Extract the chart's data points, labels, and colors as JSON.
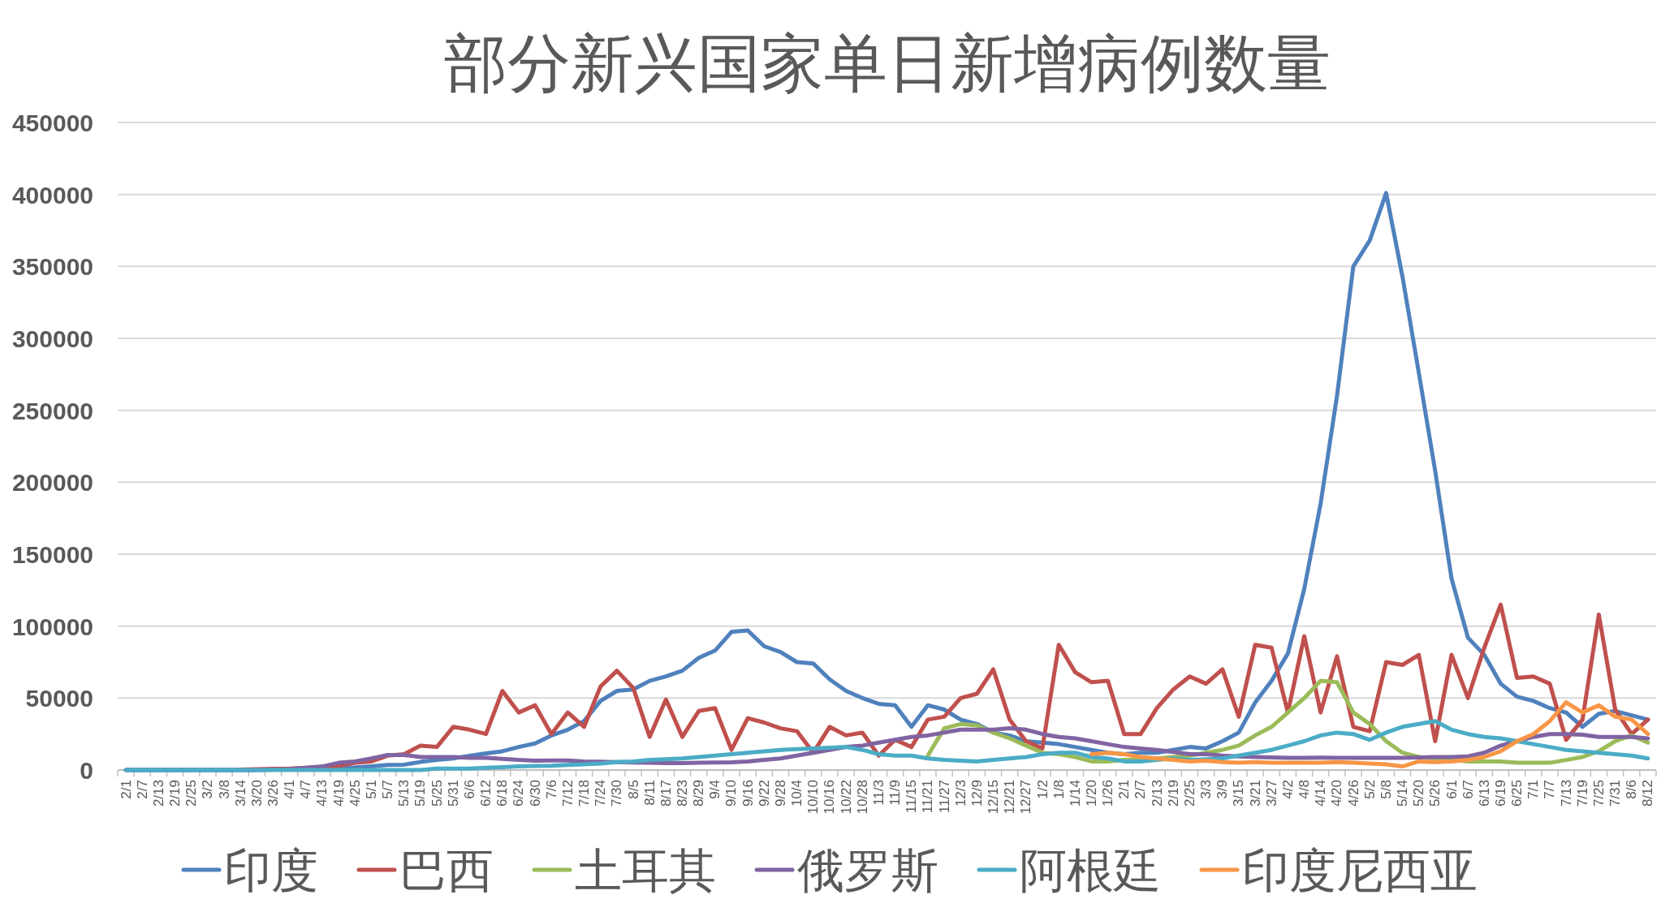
{
  "chart_data": {
    "type": "line",
    "title": "部分新兴国家单日新增病例数量",
    "categories": [
      "2/1",
      "2/7",
      "2/13",
      "2/19",
      "2/25",
      "3/2",
      "3/8",
      "3/14",
      "3/20",
      "3/26",
      "4/1",
      "4/7",
      "4/13",
      "4/19",
      "4/25",
      "5/1",
      "5/7",
      "5/13",
      "5/19",
      "5/25",
      "5/31",
      "6/6",
      "6/12",
      "6/18",
      "6/24",
      "6/30",
      "7/6",
      "7/12",
      "7/18",
      "7/24",
      "7/30",
      "8/5",
      "8/11",
      "8/17",
      "8/23",
      "8/29",
      "9/4",
      "9/10",
      "9/16",
      "9/22",
      "9/28",
      "10/4",
      "10/10",
      "10/16",
      "10/22",
      "10/28",
      "11/3",
      "11/9",
      "11/15",
      "11/21",
      "11/27",
      "12/3",
      "12/9",
      "12/15",
      "12/21",
      "12/27",
      "1/2",
      "1/8",
      "1/14",
      "1/20",
      "1/26",
      "2/1",
      "2/7",
      "2/13",
      "2/19",
      "2/25",
      "3/3",
      "3/9",
      "3/15",
      "3/21",
      "3/27",
      "4/2",
      "4/8",
      "4/14",
      "4/20",
      "4/26",
      "5/2",
      "5/8",
      "5/14",
      "5/20",
      "5/26",
      "6/1",
      "6/7",
      "6/13",
      "6/19",
      "6/25",
      "7/1",
      "7/7",
      "7/13",
      "7/19",
      "7/25",
      "7/31",
      "8/6",
      "8/12"
    ],
    "series": [
      {
        "name": "印度",
        "color": "#4f81bd",
        "values": [
          0,
          0,
          0,
          0,
          0,
          0,
          0,
          0,
          100,
          300,
          500,
          600,
          1000,
          1500,
          1800,
          2500,
          3500,
          3700,
          5600,
          7000,
          8000,
          9900,
          11500,
          13000,
          16000,
          18500,
          24000,
          28000,
          34000,
          48000,
          55000,
          56000,
          62000,
          65000,
          69000,
          78000,
          83000,
          96000,
          97000,
          86000,
          82000,
          75000,
          74000,
          63000,
          55000,
          50000,
          46000,
          45000,
          30000,
          45000,
          42000,
          35000,
          32000,
          26000,
          24000,
          20000,
          19000,
          18000,
          16000,
          14000,
          12000,
          11000,
          12000,
          12000,
          14000,
          16000,
          15000,
          20000,
          26000,
          47000,
          62000,
          81000,
          126000,
          185000,
          260000,
          350000,
          368000,
          401000,
          343000,
          276000,
          208000,
          133000,
          92000,
          80000,
          60000,
          51000,
          48000,
          43000,
          40000,
          30000,
          39000,
          41000,
          38000,
          35000
        ]
      },
      {
        "name": "巴西",
        "color": "#c0504d",
        "values": [
          null,
          null,
          null,
          null,
          null,
          null,
          null,
          300,
          500,
          800,
          1000,
          1500,
          2000,
          3000,
          5000,
          6000,
          10000,
          11000,
          17000,
          16000,
          30000,
          28000,
          25000,
          55000,
          40000,
          45000,
          25000,
          40000,
          30000,
          58000,
          69000,
          57000,
          23000,
          49000,
          23000,
          41000,
          43000,
          14000,
          36000,
          33000,
          29000,
          27000,
          12000,
          30000,
          24000,
          26000,
          10000,
          21000,
          16000,
          35000,
          37000,
          50000,
          53000,
          70000,
          35000,
          20000,
          15000,
          87000,
          68000,
          61000,
          62000,
          25000,
          25000,
          43000,
          56000,
          65000,
          60000,
          70000,
          37000,
          87000,
          85000,
          40000,
          93000,
          40000,
          79000,
          30000,
          27000,
          75000,
          73000,
          80000,
          20000,
          80000,
          50000,
          85000,
          115000,
          64000,
          65000,
          60000,
          21000,
          35000,
          108000,
          42000,
          25000,
          35000
        ]
      },
      {
        "name": "土耳其",
        "color": "#9bbb59",
        "values": [
          null,
          null,
          null,
          null,
          null,
          null,
          null,
          null,
          null,
          null,
          null,
          null,
          null,
          null,
          null,
          null,
          null,
          null,
          null,
          null,
          null,
          null,
          null,
          null,
          null,
          null,
          null,
          null,
          null,
          null,
          null,
          null,
          null,
          null,
          null,
          null,
          null,
          null,
          null,
          null,
          null,
          null,
          null,
          null,
          null,
          null,
          null,
          null,
          null,
          10000,
          29000,
          32000,
          31000,
          26000,
          22000,
          17000,
          12000,
          11000,
          9000,
          6000,
          6000,
          7000,
          7000,
          8000,
          9000,
          10000,
          12000,
          14000,
          17000,
          24000,
          30000,
          40000,
          50000,
          62000,
          61000,
          40000,
          32000,
          20000,
          12000,
          9000,
          8000,
          7000,
          6000,
          6000,
          6000,
          5000,
          5000,
          5000,
          7000,
          9000,
          13000,
          20000,
          24000,
          19000
        ]
      },
      {
        "name": "俄罗斯",
        "color": "#8064a2",
        "values": [
          0,
          0,
          0,
          0,
          0,
          0,
          0,
          0,
          0,
          300,
          500,
          1500,
          2500,
          5000,
          6000,
          8000,
          10500,
          10500,
          9000,
          9000,
          9000,
          8500,
          8500,
          7800,
          7000,
          6500,
          6600,
          6600,
          6000,
          5800,
          5500,
          5200,
          5100,
          4800,
          4800,
          5000,
          5200,
          5400,
          6000,
          7000,
          8000,
          10000,
          12000,
          14000,
          16000,
          17000,
          19000,
          21000,
          23000,
          24000,
          26000,
          28000,
          28000,
          28000,
          29000,
          28000,
          25000,
          23000,
          22000,
          20000,
          18000,
          16000,
          15000,
          14000,
          12500,
          11000,
          11000,
          10000,
          9500,
          9000,
          8700,
          8500,
          8500,
          8600,
          8500,
          8500,
          8500,
          8500,
          8500,
          8800,
          9000,
          9000,
          9500,
          12000,
          17000,
          20000,
          23000,
          25000,
          25000,
          24500,
          23000,
          23000,
          23000,
          22000
        ]
      },
      {
        "name": "阿根廷",
        "color": "#4bacc6",
        "values": [
          0,
          0,
          0,
          0,
          0,
          0,
          0,
          0,
          0,
          0,
          0,
          0,
          0,
          0,
          0,
          0,
          0,
          0,
          0,
          1000,
          1000,
          1000,
          1500,
          2000,
          2500,
          2800,
          3000,
          3500,
          4000,
          4500,
          5500,
          6000,
          7000,
          7500,
          8000,
          9000,
          10000,
          11000,
          12000,
          13000,
          14000,
          14500,
          15000,
          15500,
          16000,
          14000,
          11000,
          10000,
          10000,
          8000,
          7000,
          6500,
          6000,
          7000,
          8000,
          9000,
          11000,
          12000,
          12000,
          9000,
          8000,
          6000,
          6000,
          7000,
          8000,
          7000,
          7500,
          8000,
          10000,
          12000,
          14000,
          17000,
          20000,
          24000,
          26000,
          25000,
          21000,
          26000,
          30000,
          32000,
          34000,
          28000,
          25000,
          23000,
          22000,
          20000,
          18000,
          16000,
          14000,
          13000,
          12000,
          11000,
          10000,
          8000
        ]
      },
      {
        "name": "印度尼西亚",
        "color": "#f79646",
        "values": [
          null,
          null,
          null,
          null,
          null,
          null,
          null,
          null,
          null,
          null,
          null,
          null,
          null,
          null,
          null,
          null,
          null,
          null,
          null,
          null,
          null,
          null,
          null,
          null,
          null,
          null,
          null,
          null,
          null,
          null,
          null,
          null,
          null,
          null,
          null,
          null,
          null,
          null,
          null,
          null,
          null,
          null,
          null,
          null,
          null,
          null,
          null,
          null,
          null,
          null,
          null,
          null,
          null,
          null,
          null,
          null,
          null,
          null,
          null,
          11000,
          12000,
          11000,
          9000,
          8000,
          7000,
          6000,
          6500,
          5500,
          5000,
          5500,
          5000,
          5000,
          5000,
          5000,
          5500,
          5000,
          4500,
          4000,
          2500,
          6000,
          5500,
          6000,
          7000,
          9000,
          13000,
          20000,
          25000,
          34000,
          47000,
          40000,
          45000,
          37000,
          35000,
          25000
        ]
      }
    ],
    "ylim": [
      0,
      450000
    ],
    "yticks": [
      0,
      50000,
      100000,
      150000,
      200000,
      250000,
      300000,
      350000,
      400000,
      450000
    ],
    "grid": "y",
    "legend": "bottom",
    "line_style": "solid",
    "marker": "none"
  }
}
